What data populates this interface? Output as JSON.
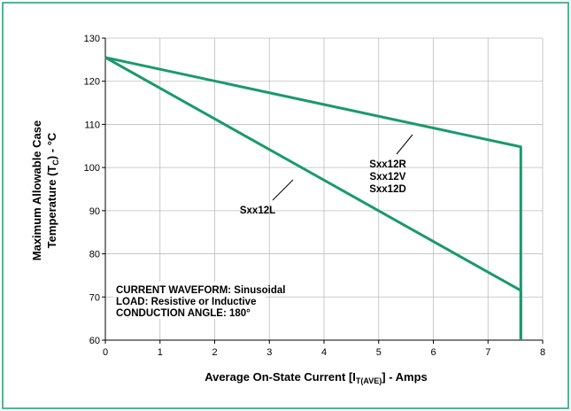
{
  "chart_data": {
    "type": "line",
    "xlabel_main": "Average On-State Current [I",
    "xlabel_sub": "T(AVE)",
    "xlabel_tail": "] - Amps",
    "ylabel_line1": "Maximum Allowable Case",
    "ylabel_line2_a": "Temperature (T",
    "ylabel_line2_sub": "C",
    "ylabel_line2_b": ") - °C",
    "xlim": [
      0,
      8
    ],
    "ylim": [
      60,
      130
    ],
    "x_ticks": [
      "0",
      "1",
      "2",
      "3",
      "4",
      "5",
      "6",
      "7",
      "8"
    ],
    "y_ticks": [
      "60",
      "70",
      "80",
      "90",
      "100",
      "110",
      "120",
      "130"
    ],
    "grid": true,
    "series": [
      {
        "name": "Sxx12R Sxx12V Sxx12D",
        "labels": [
          "Sxx12R",
          "Sxx12V",
          "Sxx12D"
        ],
        "points": [
          [
            0,
            125.5
          ],
          [
            7.6,
            104.8
          ],
          [
            7.6,
            60
          ]
        ]
      },
      {
        "name": "Sxx12L",
        "labels": [
          "Sxx12L"
        ],
        "points": [
          [
            0,
            125.5
          ],
          [
            7.6,
            71.5
          ],
          [
            7.6,
            60
          ]
        ]
      }
    ],
    "annotations": [
      "CURRENT WAVEFORM: Sinusoidal",
      "LOAD: Resistive or Inductive",
      "CONDUCTION ANGLE: 180°"
    ]
  },
  "colors": {
    "frame": "#1f9b6b",
    "series": "#1a9a6a",
    "grid": "#bdbdbd",
    "axis": "#000000"
  }
}
